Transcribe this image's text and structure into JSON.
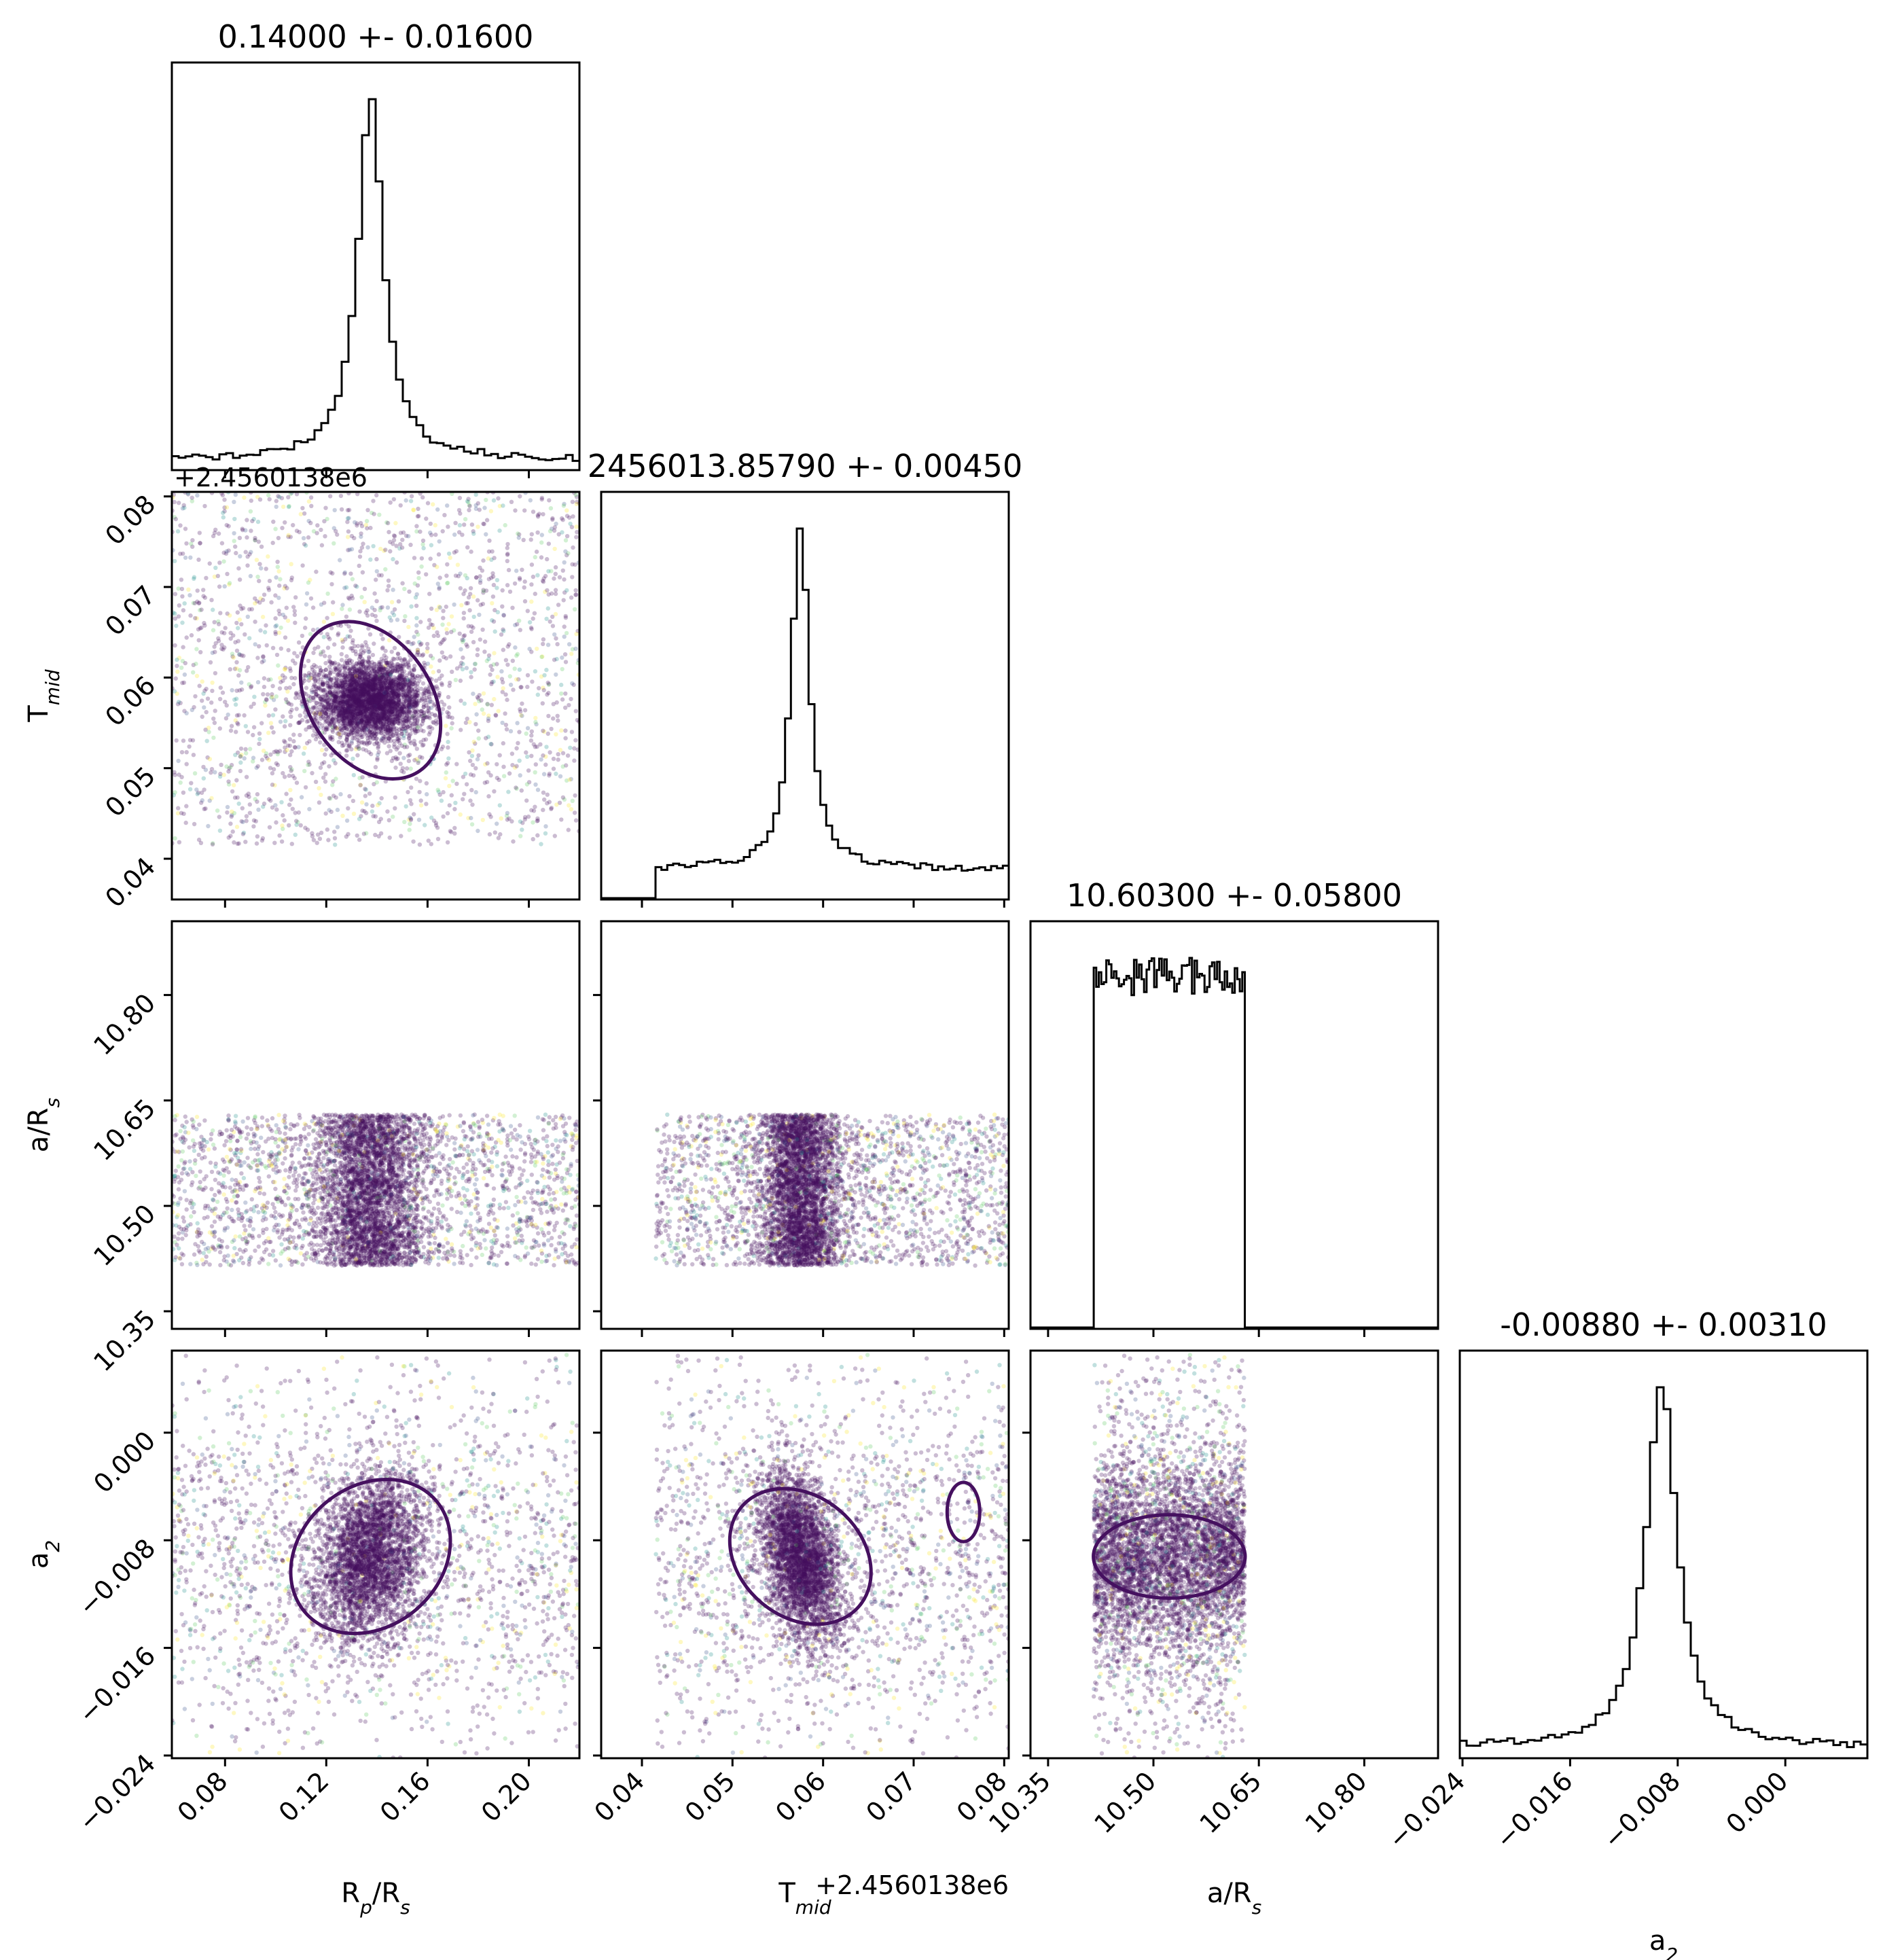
{
  "chart_data": {
    "type": "corner",
    "parameters": [
      {
        "key": "rp",
        "label_main": "R",
        "label_sub": "p",
        "label_tail": "/R",
        "label_tail_sub": "s",
        "title": "0.14000 +- 0.01600",
        "median": 0.14,
        "sigma": 0.016,
        "range": [
          0.059,
          0.22
        ],
        "ticks": [
          0.08,
          0.12,
          0.16,
          0.2
        ],
        "tick_labels": [
          "0.08",
          "0.12",
          "0.16",
          "0.20"
        ],
        "offset": ""
      },
      {
        "key": "tmid",
        "label_main": "T",
        "label_sub": "mid",
        "label_tail": "",
        "label_tail_sub": "",
        "title": "2456013.85790 +- 0.00450",
        "median": 0.0579,
        "sigma": 0.0045,
        "range": [
          0.0355,
          0.0805
        ],
        "ticks": [
          0.04,
          0.05,
          0.06,
          0.07,
          0.08
        ],
        "tick_labels": [
          "0.04",
          "0.05",
          "0.06",
          "0.07",
          "0.08"
        ],
        "offset": "+2.4560138e6"
      },
      {
        "key": "ars",
        "label_main": "a/R",
        "label_sub": "s",
        "label_tail": "",
        "label_tail_sub": "",
        "title": "10.60300 +- 0.05800",
        "median": 10.603,
        "sigma": 0.058,
        "range": [
          10.325,
          10.905
        ],
        "ticks": [
          10.35,
          10.5,
          10.65,
          10.8
        ],
        "tick_labels": [
          "10.35",
          "10.50",
          "10.65",
          "10.80"
        ],
        "offset": ""
      },
      {
        "key": "a2",
        "label_main": "a",
        "label_sub": "2",
        "label_tail": "",
        "label_tail_sub": "",
        "title": "-0.00880 +- 0.00310",
        "median": -0.0088,
        "sigma": 0.0031,
        "range": [
          -0.0242,
          0.0061
        ],
        "ticks": [
          -0.024,
          -0.016,
          -0.008,
          0.0
        ],
        "tick_labels": [
          "−0.024",
          "−0.016",
          "−0.008",
          "0.000"
        ],
        "offset": ""
      }
    ],
    "histograms": {
      "rp": {
        "bins": 60,
        "shape": "peak",
        "peak_center": 0.1375,
        "peak_width": 0.006,
        "background": 0.03,
        "lo": 0.059,
        "hi": 0.22
      },
      "tmid": {
        "bins": 60,
        "shape": "peak",
        "peak_center": 0.0575,
        "peak_width": 0.0012,
        "background": 0.09,
        "lo": 0.0415,
        "hi": 0.0805
      },
      "ars": {
        "bins": 60,
        "shape": "flat",
        "lo": 10.415,
        "hi": 10.63
      },
      "a2": {
        "bins": 60,
        "shape": "peak",
        "peak_center": -0.0092,
        "peak_width": 0.0014,
        "background": 0.03,
        "lo": -0.0242,
        "hi": 0.0061
      }
    },
    "scatter_colormap": [
      "#45105f",
      "#3b528b",
      "#21918c",
      "#5ec962",
      "#fde725"
    ],
    "contour_color": "#45105f",
    "histogram_color": "#000000",
    "grid": false,
    "legend": "none"
  }
}
